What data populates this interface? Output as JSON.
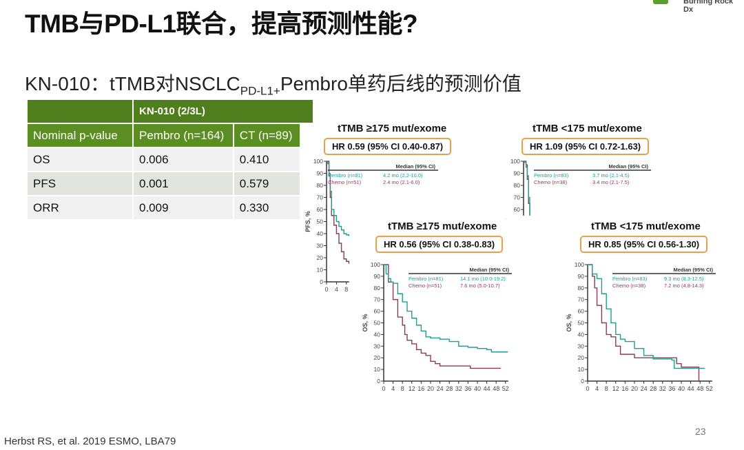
{
  "title": "TMB与PD-L1联合，提高预测性能?",
  "subtitle": {
    "pre": "KN-010：tTMB对NSCLC",
    "sub": "PD-L1+",
    "post": "Pembro单药后线的预测价值"
  },
  "logo": {
    "text": "Burning Rock Dx",
    "color": "#5aa02c"
  },
  "table": {
    "group_header": "KN-010 (2/3L)",
    "headers": [
      "Nominal p-value",
      "Pembro (n=164)",
      "CT (n=89)"
    ],
    "rows": [
      [
        "OS",
        "0.006",
        "0.410"
      ],
      [
        "PFS",
        "0.001",
        "0.579"
      ],
      [
        "ORR",
        "0.009",
        "0.330"
      ]
    ]
  },
  "colors": {
    "pembro": "#1f9d8f",
    "chemo": "#8b3a55",
    "hr_box": "#e8a04a",
    "table_green": "#5a8d22"
  },
  "chart_data": [
    {
      "type": "line",
      "step": true,
      "title": "tTMB ≥175 mut/exome",
      "hr": "HR 0.59 (95% CI 0.40-0.87)",
      "ylabel": "PFS, %",
      "ylim": [
        0,
        100
      ],
      "yticks": [
        0,
        10,
        20,
        30,
        40,
        50,
        60,
        70,
        80,
        90,
        100
      ],
      "xticks": [
        0,
        4,
        8
      ],
      "median_header": "Median (95% CI)",
      "series": [
        {
          "name": "Pembro (n=81)",
          "median": "4.2 mo (2.2-10.0)",
          "points": [
            [
              0,
              100
            ],
            [
              0.5,
              98
            ],
            [
              1,
              90
            ],
            [
              1.5,
              75
            ],
            [
              2,
              60
            ],
            [
              3,
              55
            ],
            [
              4,
              50
            ],
            [
              5,
              46
            ],
            [
              6,
              43
            ],
            [
              7,
              40
            ],
            [
              8,
              39
            ],
            [
              9,
              38
            ]
          ]
        },
        {
          "name": "Chemo (n=51)",
          "median": "2.4 mo (2.1-6.0)",
          "points": [
            [
              0,
              100
            ],
            [
              1,
              88
            ],
            [
              1.5,
              70
            ],
            [
              2,
              55
            ],
            [
              3,
              47
            ],
            [
              4,
              40
            ],
            [
              5,
              32
            ],
            [
              6,
              25
            ],
            [
              7,
              19
            ],
            [
              8,
              17
            ],
            [
              9,
              15
            ]
          ]
        }
      ]
    },
    {
      "type": "line",
      "step": true,
      "title": "tTMB <175 mut/exome",
      "hr": "HR 1.09 (95% CI 0.72-1.63)",
      "ylabel": "%",
      "ylim": [
        0,
        100
      ],
      "yticks": [
        60,
        70,
        80,
        90,
        100
      ],
      "xticks": [],
      "median_header": "Median (95% CI)",
      "series": [
        {
          "name": "Pembro (n=83)",
          "median": "3.7 mo (2.1-4.5)",
          "points": [
            [
              0,
              100
            ],
            [
              0.5,
              99
            ],
            [
              1,
              95
            ],
            [
              1.5,
              88
            ],
            [
              2,
              70
            ],
            [
              2.5,
              55
            ]
          ]
        },
        {
          "name": "Chemo (n=38)",
          "median": "3.4 mo (2.1-7.5)",
          "points": [
            [
              0,
              100
            ],
            [
              1,
              97
            ],
            [
              1.5,
              85
            ],
            [
              2,
              65
            ],
            [
              2.5,
              55
            ]
          ]
        }
      ]
    },
    {
      "type": "line",
      "step": true,
      "title": "tTMB ≥175 mut/exome",
      "hr": "HR 0.56 (95% CI 0.38-0.83)",
      "ylabel": "OS, %",
      "ylim": [
        0,
        100
      ],
      "yticks": [
        0,
        10,
        20,
        30,
        40,
        50,
        60,
        70,
        80,
        90,
        100
      ],
      "xticks": [
        0,
        4,
        8,
        12,
        16,
        20,
        24,
        28,
        32,
        36,
        40,
        44,
        48,
        52
      ],
      "median_header": "Median (95% CI)",
      "series": [
        {
          "name": "Pembro (n=81)",
          "median": "14.1 mo (10.0-19.2)",
          "points": [
            [
              0,
              100
            ],
            [
              1,
              92
            ],
            [
              2,
              88
            ],
            [
              3,
              85
            ],
            [
              4,
              84
            ],
            [
              6,
              75
            ],
            [
              8,
              68
            ],
            [
              10,
              60
            ],
            [
              12,
              54
            ],
            [
              14,
              48
            ],
            [
              16,
              43
            ],
            [
              18,
              38
            ],
            [
              20,
              37
            ],
            [
              24,
              36
            ],
            [
              28,
              34
            ],
            [
              32,
              30
            ],
            [
              36,
              29
            ],
            [
              40,
              28
            ],
            [
              44,
              27
            ],
            [
              46,
              25
            ],
            [
              53,
              25
            ]
          ]
        },
        {
          "name": "Chemo (n=51)",
          "median": "7.6 mo (5.0-10.7)",
          "points": [
            [
              0,
              100
            ],
            [
              2,
              85
            ],
            [
              4,
              70
            ],
            [
              6,
              55
            ],
            [
              8,
              48
            ],
            [
              9,
              40
            ],
            [
              10,
              35
            ],
            [
              12,
              32
            ],
            [
              14,
              27
            ],
            [
              16,
              24
            ],
            [
              18,
              22
            ],
            [
              20,
              17
            ],
            [
              22,
              15
            ],
            [
              24,
              13
            ],
            [
              36,
              13
            ],
            [
              37,
              11
            ],
            [
              50,
              11
            ]
          ]
        }
      ]
    },
    {
      "type": "line",
      "step": true,
      "title": "tTMB <175 mut/exome",
      "hr": "HR 0.85 (95% CI 0.56-1.30)",
      "ylabel": "OS, %",
      "ylim": [
        0,
        100
      ],
      "yticks": [
        0,
        10,
        20,
        30,
        40,
        50,
        60,
        70,
        80,
        90,
        100
      ],
      "xticks": [
        0,
        4,
        8,
        12,
        16,
        20,
        24,
        28,
        32,
        36,
        40,
        44,
        48,
        52
      ],
      "median_header": "Median (95% CI)",
      "series": [
        {
          "name": "Pembro (n=83)",
          "median": "9.3 mo (8.3-12.5)",
          "points": [
            [
              0,
              100
            ],
            [
              2,
              92
            ],
            [
              4,
              88
            ],
            [
              6,
              75
            ],
            [
              8,
              62
            ],
            [
              10,
              50
            ],
            [
              12,
              40
            ],
            [
              14,
              36
            ],
            [
              16,
              34
            ],
            [
              20,
              28
            ],
            [
              24,
              22
            ],
            [
              28,
              19
            ],
            [
              36,
              18
            ],
            [
              37,
              11
            ],
            [
              50,
              11
            ]
          ]
        },
        {
          "name": "Chemo (n=38)",
          "median": "7.2 mo (4.8-14.3)",
          "points": [
            [
              0,
              100
            ],
            [
              2,
              90
            ],
            [
              3,
              80
            ],
            [
              4,
              65
            ],
            [
              6,
              50
            ],
            [
              8,
              40
            ],
            [
              10,
              38
            ],
            [
              12,
              30
            ],
            [
              14,
              23
            ],
            [
              20,
              20
            ],
            [
              28,
              20
            ],
            [
              36,
              20
            ],
            [
              38,
              15
            ],
            [
              40,
              12
            ],
            [
              47,
              12
            ],
            [
              47.5,
              0
            ]
          ]
        }
      ]
    }
  ],
  "footer": "Herbst RS, et al. 2019 ESMO, LBA79",
  "page_number": "23"
}
